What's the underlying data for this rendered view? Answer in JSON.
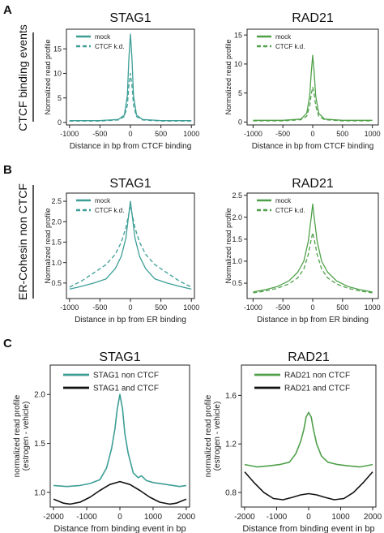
{
  "panel_letters": [
    "A",
    "B",
    "C"
  ],
  "row_labels": {
    "A": "CTCF binding events",
    "B": "ER-Cohesin non CTCF"
  },
  "colors": {
    "stag1": "#3d9e96",
    "rad21": "#4fa049",
    "black": "#111111",
    "axis": "#222222"
  },
  "chart_data": [
    {
      "id": "A-STAG1",
      "type": "line",
      "title": "STAG1",
      "xlabel": "Distance in bp from CTCF binding",
      "ylabel": "Normalized read profile",
      "xlim": [
        -1050,
        1050
      ],
      "ylim": [
        -0.5,
        19
      ],
      "xticks": [
        -1000,
        -500,
        0,
        500,
        1000
      ],
      "xtick_labels": [
        "-1000",
        "-500",
        "0",
        "500",
        "1000"
      ],
      "yticks": [
        0,
        5,
        10,
        15
      ],
      "ytick_labels": [
        "0",
        "5",
        "10",
        "15"
      ],
      "legend": "top-left",
      "color": "#3d9e96",
      "series": [
        {
          "name": "mock",
          "dash": false,
          "x": [
            -1000,
            -500,
            -200,
            -100,
            -50,
            -25,
            0,
            25,
            50,
            100,
            200,
            500,
            1000
          ],
          "y": [
            0.4,
            0.4,
            0.6,
            1.5,
            5.5,
            13,
            18,
            13,
            5.5,
            1.5,
            0.6,
            0.4,
            0.4
          ]
        },
        {
          "name": "CTCF k.d.",
          "dash": true,
          "x": [
            -1000,
            -500,
            -200,
            -100,
            -50,
            -25,
            0,
            25,
            50,
            100,
            200,
            500,
            1000
          ],
          "y": [
            0.3,
            0.3,
            0.5,
            1.2,
            3.5,
            7.5,
            10,
            7.5,
            3.5,
            1.2,
            0.5,
            0.3,
            0.3
          ]
        }
      ]
    },
    {
      "id": "A-RAD21",
      "type": "line",
      "title": "RAD21",
      "xlabel": "Distance in bp from CTCF binding",
      "ylabel": "Normalized read profile",
      "xlim": [
        -1100,
        1100
      ],
      "ylim": [
        -0.5,
        16
      ],
      "xticks": [
        -1000,
        -500,
        0,
        500,
        1000
      ],
      "xtick_labels": [
        "-1000",
        "-500",
        "0",
        "500",
        "1000"
      ],
      "yticks": [
        0,
        5,
        10,
        15
      ],
      "ytick_labels": [
        "0",
        "5",
        "10",
        "15"
      ],
      "legend": "top-left",
      "color": "#4fa049",
      "series": [
        {
          "name": "mock",
          "dash": false,
          "x": [
            -1000,
            -500,
            -200,
            -100,
            -50,
            -25,
            0,
            25,
            50,
            100,
            200,
            500,
            1000
          ],
          "y": [
            0.3,
            0.3,
            0.5,
            1.5,
            4.5,
            8.5,
            11.5,
            8.5,
            4.5,
            1.5,
            0.5,
            0.3,
            0.3
          ]
        },
        {
          "name": "CTCF k.d.",
          "dash": true,
          "x": [
            -1000,
            -500,
            -200,
            -100,
            -50,
            -25,
            0,
            25,
            50,
            100,
            200,
            500,
            1000
          ],
          "y": [
            0.2,
            0.2,
            0.4,
            1.0,
            2.8,
            4.8,
            6.0,
            4.8,
            2.8,
            1.0,
            0.4,
            0.2,
            0.2
          ]
        }
      ]
    },
    {
      "id": "B-STAG1",
      "type": "line",
      "title": "STAG1",
      "xlabel": "Distance in bp from ER binding",
      "ylabel": "Normalized read profile",
      "xlim": [
        -1050,
        1050
      ],
      "ylim": [
        0.12,
        2.7
      ],
      "xticks": [
        -1000,
        -500,
        0,
        500,
        1000
      ],
      "xtick_labels": [
        "-1000",
        "-500",
        "0",
        "500",
        "1000"
      ],
      "yticks": [
        0.5,
        1.0,
        1.5,
        2.0,
        2.5
      ],
      "ytick_labels": [
        "0.5",
        "1.0",
        "1.5",
        "2.0",
        "2.5"
      ],
      "legend": "top-left",
      "color": "#3d9e96",
      "series": [
        {
          "name": "mock",
          "dash": false,
          "x": [
            -1000,
            -800,
            -600,
            -400,
            -250,
            -150,
            -75,
            -25,
            0,
            25,
            75,
            150,
            250,
            400,
            600,
            800,
            1000
          ],
          "y": [
            0.35,
            0.42,
            0.5,
            0.6,
            0.85,
            1.15,
            1.6,
            2.2,
            2.5,
            2.2,
            1.6,
            1.15,
            0.85,
            0.6,
            0.5,
            0.42,
            0.35
          ]
        },
        {
          "name": "CTCF k.d.",
          "dash": true,
          "x": [
            -1000,
            -800,
            -600,
            -400,
            -250,
            -150,
            -75,
            -25,
            0,
            25,
            75,
            150,
            250,
            400,
            600,
            800,
            1000
          ],
          "y": [
            0.4,
            0.55,
            0.75,
            0.95,
            1.2,
            1.5,
            1.85,
            2.2,
            2.35,
            2.2,
            1.85,
            1.5,
            1.2,
            0.95,
            0.75,
            0.55,
            0.4
          ]
        }
      ]
    },
    {
      "id": "B-RAD21",
      "type": "line",
      "title": "RAD21",
      "xlabel": "Distance in bp from ER binding",
      "ylabel": "Normalized read profile",
      "xlim": [
        -1100,
        1100
      ],
      "ylim": [
        0.15,
        2.55
      ],
      "xticks": [
        -1000,
        -500,
        0,
        500,
        1000
      ],
      "xtick_labels": [
        "-1000",
        "-500",
        "0",
        "500",
        "1000"
      ],
      "yticks": [
        0.5,
        1.0,
        1.5,
        2.0,
        2.5
      ],
      "ytick_labels": [
        "0.5",
        "1.0",
        "1.5",
        "2.0",
        "2.5"
      ],
      "legend": "top-left",
      "color": "#4fa049",
      "series": [
        {
          "name": "mock",
          "dash": false,
          "x": [
            -1000,
            -800,
            -600,
            -400,
            -250,
            -150,
            -75,
            -25,
            0,
            25,
            75,
            150,
            250,
            400,
            600,
            800,
            1000
          ],
          "y": [
            0.3,
            0.35,
            0.42,
            0.55,
            0.75,
            1.0,
            1.45,
            2.0,
            2.3,
            2.0,
            1.45,
            1.0,
            0.75,
            0.55,
            0.42,
            0.35,
            0.3
          ]
        },
        {
          "name": "CTCF k.d.",
          "dash": true,
          "x": [
            -1000,
            -800,
            -600,
            -400,
            -250,
            -150,
            -75,
            -25,
            0,
            25,
            75,
            150,
            250,
            400,
            600,
            800,
            1000
          ],
          "y": [
            0.28,
            0.32,
            0.38,
            0.48,
            0.62,
            0.82,
            1.15,
            1.5,
            1.65,
            1.5,
            1.15,
            0.82,
            0.62,
            0.48,
            0.38,
            0.32,
            0.28
          ]
        }
      ]
    },
    {
      "id": "C-STAG1",
      "type": "line",
      "title": "STAG1",
      "xlabel": "Distance from binding event in bp",
      "ylabel": "normalized read profile",
      "ylabel2": "(estrogen - vehicle)",
      "xlim": [
        -2100,
        2100
      ],
      "ylim": [
        0.85,
        2.3
      ],
      "xticks": [
        -2000,
        -1000,
        0,
        1000,
        2000
      ],
      "xtick_labels": [
        "-2000",
        "-1000",
        "0",
        "1000",
        "2000"
      ],
      "yticks": [
        1.0,
        1.5,
        2.0
      ],
      "ytick_labels": [
        "1.0",
        "1.5",
        "2.0"
      ],
      "legend": "top-left",
      "series": [
        {
          "name": "STAG1 non CTCF",
          "color": "#3d9e96",
          "x": [
            -2000,
            -1600,
            -1200,
            -900,
            -600,
            -400,
            -250,
            -150,
            -80,
            0,
            80,
            150,
            250,
            400,
            550,
            650,
            800,
            1000,
            1400,
            1800,
            2000
          ],
          "y": [
            1.07,
            1.06,
            1.07,
            1.09,
            1.13,
            1.25,
            1.45,
            1.65,
            1.85,
            2.0,
            1.85,
            1.6,
            1.4,
            1.2,
            1.15,
            1.17,
            1.12,
            1.1,
            1.08,
            1.06,
            1.07
          ]
        },
        {
          "name": "STAG1 and CTCF",
          "color": "#111111",
          "x": [
            -2000,
            -1700,
            -1500,
            -1200,
            -900,
            -600,
            -300,
            0,
            300,
            600,
            900,
            1200,
            1500,
            1700,
            2000
          ],
          "y": [
            0.93,
            0.89,
            0.88,
            0.9,
            0.95,
            1.02,
            1.08,
            1.11,
            1.08,
            1.02,
            0.95,
            0.9,
            0.88,
            0.89,
            0.93
          ]
        }
      ]
    },
    {
      "id": "C-RAD21",
      "type": "line",
      "title": "RAD21",
      "xlabel": "Distance from binding event in bp",
      "ylabel": "normalized read profile",
      "ylabel2": "(estrogen - vehicle)",
      "xlim": [
        -2100,
        2100
      ],
      "ylim": [
        0.68,
        1.85
      ],
      "xticks": [
        -2000,
        -1000,
        0,
        1000,
        2000
      ],
      "xtick_labels": [
        "-2000",
        "-1000",
        "0",
        "1000",
        "2000"
      ],
      "yticks": [
        0.8,
        1.2,
        1.6
      ],
      "ytick_labels": [
        "0.8",
        "1.2",
        "1.6"
      ],
      "legend": "top-left",
      "series": [
        {
          "name": "RAD21 non CTCF",
          "color": "#4fa049",
          "x": [
            -2000,
            -1600,
            -1200,
            -900,
            -600,
            -400,
            -250,
            -150,
            -80,
            0,
            80,
            150,
            250,
            400,
            600,
            900,
            1200,
            1600,
            2000
          ],
          "y": [
            1.03,
            1.01,
            1.02,
            1.03,
            1.05,
            1.12,
            1.22,
            1.32,
            1.42,
            1.46,
            1.42,
            1.32,
            1.2,
            1.1,
            1.05,
            1.03,
            1.02,
            1.01,
            1.03
          ]
        },
        {
          "name": "RAD21 and CTCF",
          "color": "#111111",
          "x": [
            -2000,
            -1700,
            -1400,
            -1100,
            -800,
            -500,
            -250,
            0,
            250,
            500,
            800,
            1100,
            1400,
            1700,
            2000
          ],
          "y": [
            0.97,
            0.88,
            0.8,
            0.75,
            0.74,
            0.76,
            0.78,
            0.79,
            0.78,
            0.76,
            0.74,
            0.75,
            0.8,
            0.88,
            0.97
          ]
        }
      ]
    }
  ]
}
